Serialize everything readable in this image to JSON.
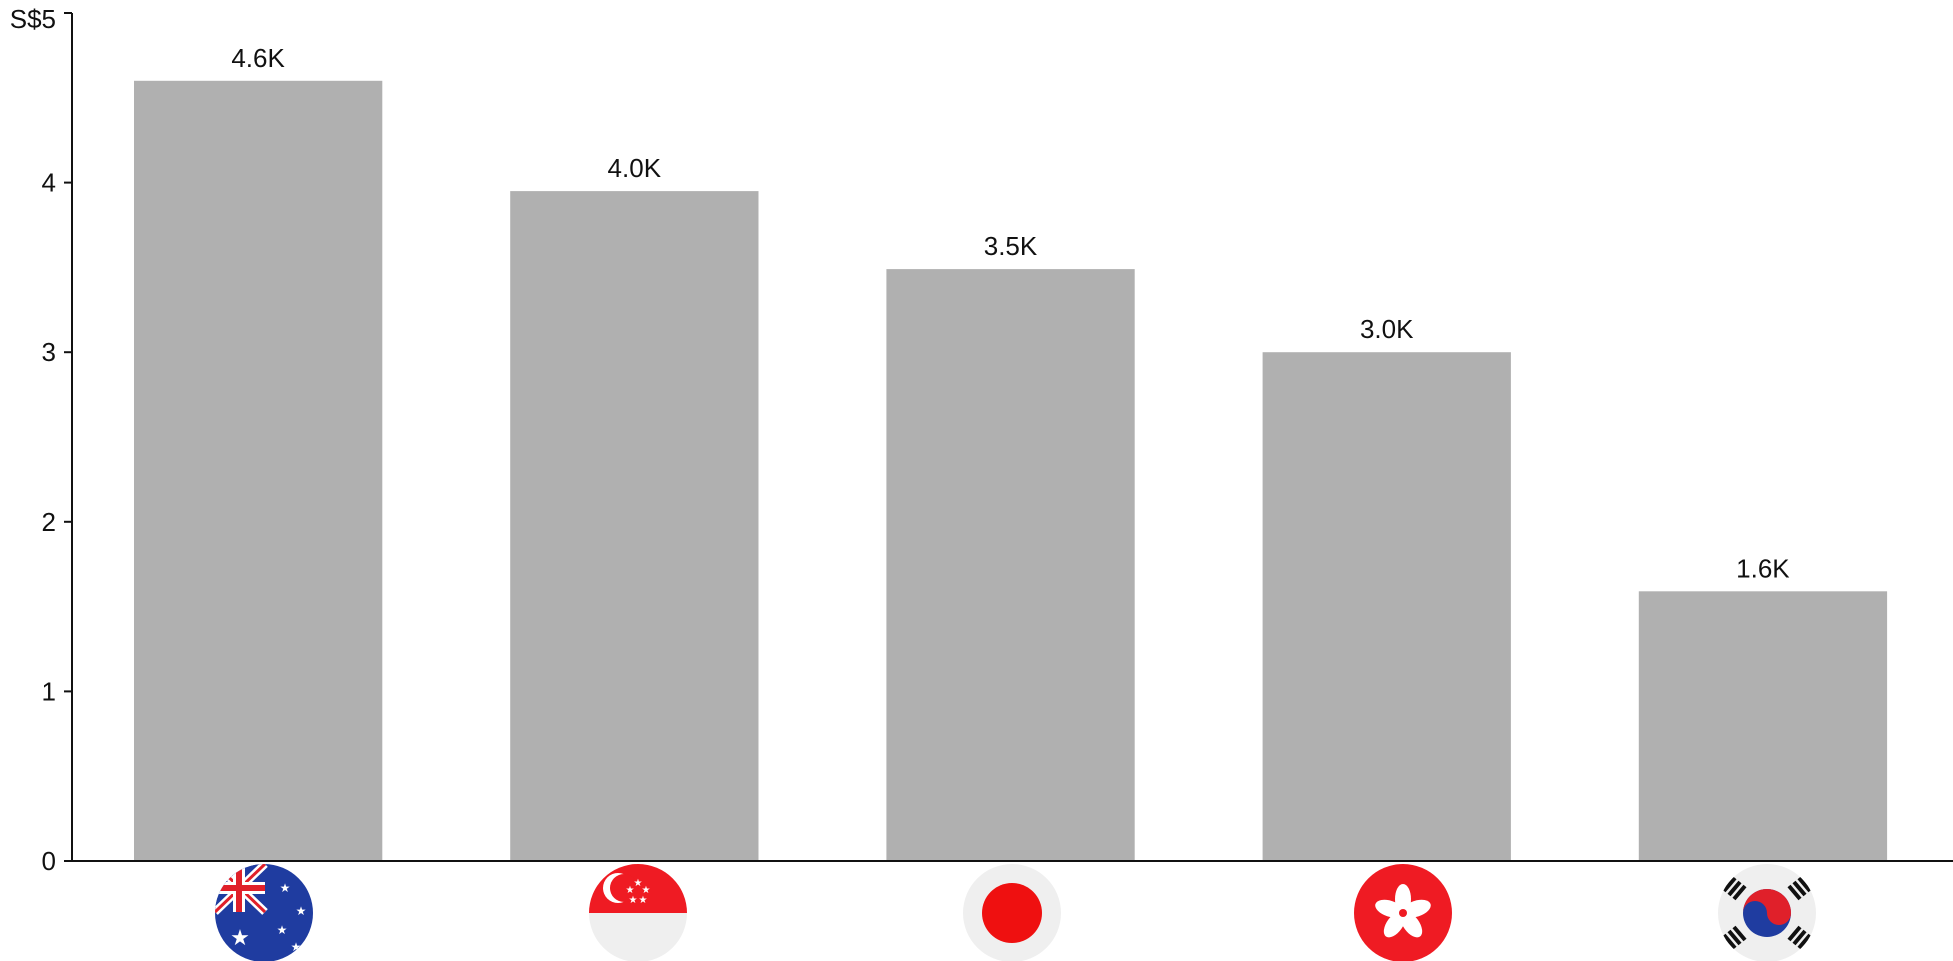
{
  "chart_data": {
    "type": "bar",
    "title": "",
    "xlabel": "",
    "ylabel": "",
    "y_tick_prefix": "S$",
    "ylim": [
      0,
      5
    ],
    "y_ticks": [
      0,
      1,
      2,
      3,
      4,
      5
    ],
    "y_tick_labels": [
      "0",
      "1",
      "2",
      "3",
      "4",
      "S$5"
    ],
    "grid": false,
    "bar_color": "#b0b0b0",
    "axis_color": "#111111",
    "categories": [
      {
        "name": "Australia",
        "icon": "australia-flag-icon"
      },
      {
        "name": "Singapore",
        "icon": "singapore-flag-icon"
      },
      {
        "name": "Japan",
        "icon": "japan-flag-icon"
      },
      {
        "name": "Hong Kong",
        "icon": "hong-kong-flag-icon"
      },
      {
        "name": "South Korea",
        "icon": "south-korea-flag-icon"
      }
    ],
    "values": [
      4.6,
      3.95,
      3.49,
      3.0,
      1.59
    ],
    "data_labels": [
      "4.6K",
      "4.0K",
      "3.5K",
      "3.0K",
      "1.6K"
    ]
  }
}
